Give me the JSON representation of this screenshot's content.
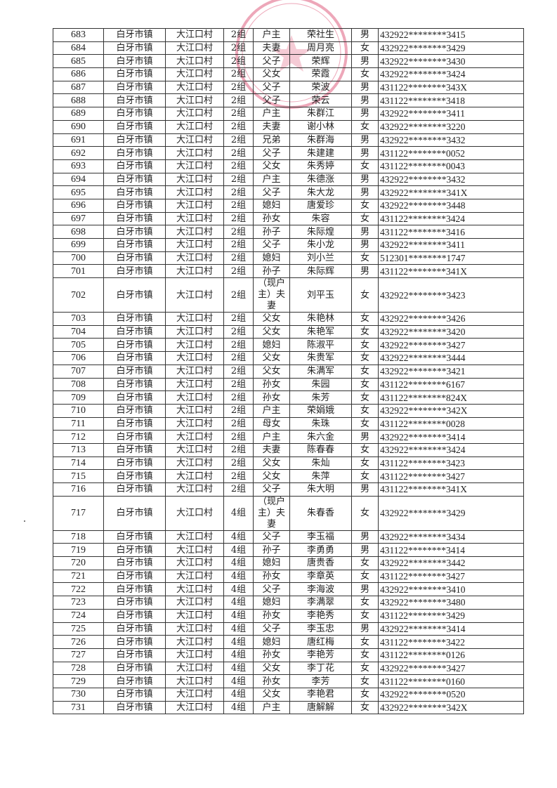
{
  "document": {
    "town": "白牙市镇",
    "village": "大江口村",
    "seal_color": "#e06080",
    "rows": [
      [
        "683",
        "2组",
        "户主",
        "荣社生",
        "男",
        "432922********3415"
      ],
      [
        "684",
        "2组",
        "夫妻",
        "周月亮",
        "女",
        "432922********3429"
      ],
      [
        "685",
        "2组",
        "父子",
        "荣辉",
        "男",
        "432922********3430"
      ],
      [
        "686",
        "2组",
        "父女",
        "荣霞",
        "女",
        "432922********3424"
      ],
      [
        "687",
        "2组",
        "父子",
        "荣波",
        "男",
        "431122********343X"
      ],
      [
        "688",
        "2组",
        "父子",
        "荣云",
        "男",
        "431122********3418"
      ],
      [
        "689",
        "2组",
        "户主",
        "朱群江",
        "男",
        "432922********3411"
      ],
      [
        "690",
        "2组",
        "夫妻",
        "谢小林",
        "女",
        "432922********3220"
      ],
      [
        "691",
        "2组",
        "兄弟",
        "朱群海",
        "男",
        "432922********3432"
      ],
      [
        "692",
        "2组",
        "父子",
        "朱建建",
        "男",
        "431122********0052"
      ],
      [
        "693",
        "2组",
        "父女",
        "朱秀婷",
        "女",
        "431122********0043"
      ],
      [
        "694",
        "2组",
        "户主",
        "朱德涨",
        "男",
        "432922********3432"
      ],
      [
        "695",
        "2组",
        "父子",
        "朱大龙",
        "男",
        "432922********341X"
      ],
      [
        "696",
        "2组",
        "媳妇",
        "唐爱珍",
        "女",
        "432922********3448"
      ],
      [
        "697",
        "2组",
        "孙女",
        "朱容",
        "女",
        "431122********3424"
      ],
      [
        "698",
        "2组",
        "孙子",
        "朱际煌",
        "男",
        "431122********3416"
      ],
      [
        "699",
        "2组",
        "父子",
        "朱小龙",
        "男",
        "432922********3411"
      ],
      [
        "700",
        "2组",
        "媳妇",
        "刘小兰",
        "女",
        "512301********1747"
      ],
      [
        "701",
        "2组",
        "孙子",
        "朱际辉",
        "男",
        "431122********341X"
      ],
      [
        "702",
        "2组",
        "（现户主）夫妻",
        "刘平玉",
        "女",
        "432922********3423"
      ],
      [
        "703",
        "2组",
        "父女",
        "朱艳林",
        "女",
        "432922********3426"
      ],
      [
        "704",
        "2组",
        "父女",
        "朱艳军",
        "女",
        "432922********3420"
      ],
      [
        "705",
        "2组",
        "媳妇",
        "陈淑平",
        "女",
        "432922********3427"
      ],
      [
        "706",
        "2组",
        "父女",
        "朱贵军",
        "女",
        "432922********3444"
      ],
      [
        "707",
        "2组",
        "父女",
        "朱满军",
        "女",
        "432922********3421"
      ],
      [
        "708",
        "2组",
        "孙女",
        "朱园",
        "女",
        "431122********6167"
      ],
      [
        "709",
        "2组",
        "孙女",
        "朱芳",
        "女",
        "431122********824X"
      ],
      [
        "710",
        "2组",
        "户主",
        "荣娟娥",
        "女",
        "432922********342X"
      ],
      [
        "711",
        "2组",
        "母女",
        "朱珠",
        "女",
        "431122********0028"
      ],
      [
        "712",
        "2组",
        "户主",
        "朱六金",
        "男",
        "432922********3414"
      ],
      [
        "713",
        "2组",
        "夫妻",
        "陈春春",
        "女",
        "432922********3424"
      ],
      [
        "714",
        "2组",
        "父女",
        "朱灿",
        "女",
        "431122********3423"
      ],
      [
        "715",
        "2组",
        "父女",
        "朱萍",
        "女",
        "431122********3427"
      ],
      [
        "716",
        "2组",
        "父子",
        "朱大明",
        "男",
        "431122********341X"
      ],
      [
        "717",
        "4组",
        "（现户主）夫妻",
        "朱春香",
        "女",
        "432922********3429"
      ],
      [
        "718",
        "4组",
        "父子",
        "李玉福",
        "男",
        "432922********3434"
      ],
      [
        "719",
        "4组",
        "孙子",
        "李勇勇",
        "男",
        "431122********3414"
      ],
      [
        "720",
        "4组",
        "媳妇",
        "唐贵香",
        "女",
        "432922********3442"
      ],
      [
        "721",
        "4组",
        "孙女",
        "李章英",
        "女",
        "431122********3427"
      ],
      [
        "722",
        "4组",
        "父子",
        "李海波",
        "男",
        "432922********3410"
      ],
      [
        "723",
        "4组",
        "媳妇",
        "李满翠",
        "女",
        "432922********3480"
      ],
      [
        "724",
        "4组",
        "孙女",
        "李艳秀",
        "女",
        "431122********3429"
      ],
      [
        "725",
        "4组",
        "父子",
        "李玉忠",
        "男",
        "432922********3414"
      ],
      [
        "726",
        "4组",
        "媳妇",
        "唐红梅",
        "女",
        "431122********3422"
      ],
      [
        "727",
        "4组",
        "孙女",
        "李艳芳",
        "女",
        "431122********0126"
      ],
      [
        "728",
        "4组",
        "父女",
        "李丁花",
        "女",
        "432922********3427"
      ],
      [
        "729",
        "4组",
        "孙女",
        "李芳",
        "女",
        "431122********0160"
      ],
      [
        "730",
        "4组",
        "父女",
        "李艳君",
        "女",
        "432922********0520"
      ],
      [
        "731",
        "4组",
        "户主",
        "唐解解",
        "女",
        "432922********342X"
      ]
    ]
  }
}
